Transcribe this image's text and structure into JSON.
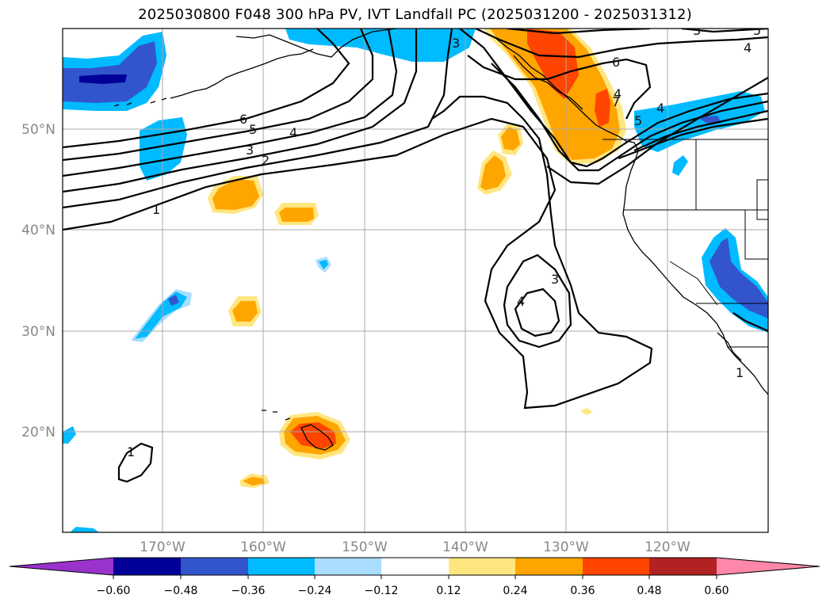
{
  "title": "2025030800 F048 300 hPa PV, IVT Landfall PC (2025031200 - 2025031312)",
  "map": {
    "longitude_labels": [
      "170°W",
      "160°W",
      "150°W",
      "140°W",
      "130°W",
      "120°W"
    ],
    "latitude_labels": [
      "50°N",
      "40°N",
      "30°N",
      "20°N"
    ],
    "contour_labels": [
      "1",
      "2",
      "3",
      "4",
      "5",
      "6",
      "3",
      "4",
      "6",
      "7",
      "5",
      "4",
      "3",
      "5",
      "4",
      "3",
      "4",
      "1",
      "1"
    ]
  },
  "colorbar": {
    "tick_labels": [
      "−0.60",
      "−0.48",
      "−0.36",
      "−0.24",
      "−0.12",
      "0.12",
      "0.24",
      "0.36",
      "0.48",
      "0.60"
    ],
    "colors": [
      "#9933cc",
      "#000099",
      "#3355cc",
      "#00bbff",
      "#aaddff",
      "#ffffff",
      "#ffe680",
      "#ffa500",
      "#ff4500",
      "#b22222",
      "#ff88aa"
    ]
  }
}
